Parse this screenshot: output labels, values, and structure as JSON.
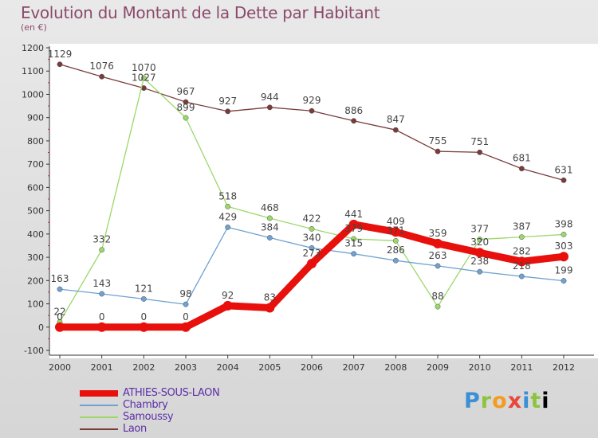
{
  "header": {
    "title": "Evolution du Montant de la Dette par Habitant",
    "subtitle": "(en €)"
  },
  "logo": {
    "text": "Proxiti"
  },
  "chart_data": {
    "type": "line",
    "title": "Evolution du Montant de la Dette par Habitant",
    "subtitle": "(en €)",
    "xlabel": "",
    "ylabel": "",
    "x": [
      "2000",
      "2001",
      "2002",
      "2003",
      "2004",
      "2005",
      "2006",
      "2007",
      "2008",
      "2009",
      "2010",
      "2011",
      "2012"
    ],
    "ylim": [
      -100,
      1200
    ],
    "yticks": [
      -100,
      0,
      100,
      200,
      300,
      400,
      500,
      600,
      700,
      800,
      900,
      1000,
      1100,
      1200
    ],
    "grid": false,
    "legend_position": "bottom-left",
    "series": [
      {
        "name": "ATHIES-SOUS-LAON",
        "color": "#e8100c",
        "emphasis": true,
        "values": [
          0,
          0,
          0,
          0,
          92,
          83,
          273,
          441,
          409,
          359,
          320,
          282,
          303
        ]
      },
      {
        "name": "Chambry",
        "color": "#6fa2d0",
        "values": [
          163,
          143,
          121,
          98,
          429,
          384,
          340,
          315,
          286,
          263,
          238,
          218,
          199
        ]
      },
      {
        "name": "Samoussy",
        "color": "#9bd86a",
        "values": [
          22,
          332,
          1070,
          899,
          518,
          468,
          422,
          379,
          371,
          88,
          377,
          387,
          398
        ]
      },
      {
        "name": "Laon",
        "color": "#7a3b3b",
        "values": [
          1129,
          1076,
          1027,
          967,
          927,
          944,
          929,
          886,
          847,
          755,
          751,
          681,
          631
        ]
      }
    ]
  }
}
